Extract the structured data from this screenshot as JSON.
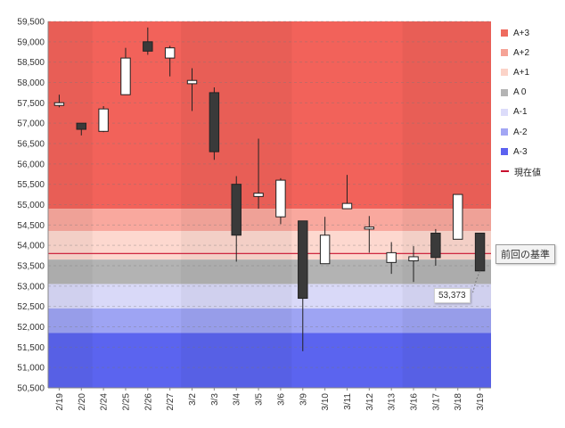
{
  "chart_data": {
    "type": "candlestick",
    "ylim": [
      50500,
      59500
    ],
    "y_ticks": [
      "50,500",
      "51,000",
      "51,500",
      "52,000",
      "52,500",
      "53,000",
      "53,500",
      "54,000",
      "54,500",
      "55,000",
      "55,500",
      "56,000",
      "56,500",
      "57,000",
      "57,500",
      "58,000",
      "58,500",
      "59,000",
      "59,500"
    ],
    "y_tick_values": [
      50500,
      51000,
      51500,
      52000,
      52500,
      53000,
      53500,
      54000,
      54500,
      55000,
      55500,
      56000,
      56500,
      57000,
      57500,
      58000,
      58500,
      59000,
      59500
    ],
    "categories": [
      "2/19",
      "2/20",
      "2/24",
      "2/25",
      "2/26",
      "2/27",
      "3/2",
      "3/3",
      "3/4",
      "3/5",
      "3/6",
      "3/9",
      "3/10",
      "3/11",
      "3/12",
      "3/13",
      "3/16",
      "3/17",
      "3/18",
      "3/19"
    ],
    "candles": [
      {
        "open": 57470,
        "high": 57700,
        "low": 57390,
        "close": 57470
      },
      {
        "open": 57000,
        "high": 57000,
        "low": 56700,
        "close": 56850
      },
      {
        "open": 56800,
        "high": 57420,
        "low": 56780,
        "close": 57350
      },
      {
        "open": 57700,
        "high": 58850,
        "low": 57700,
        "close": 58600
      },
      {
        "open": 59000,
        "high": 59350,
        "low": 58680,
        "close": 58770
      },
      {
        "open": 58600,
        "high": 58900,
        "low": 58150,
        "close": 58850
      },
      {
        "open": 57970,
        "high": 58350,
        "low": 57300,
        "close": 58050
      },
      {
        "open": 57750,
        "high": 57880,
        "low": 56100,
        "close": 56300
      },
      {
        "open": 55500,
        "high": 55700,
        "low": 53600,
        "close": 54250
      },
      {
        "open": 55200,
        "high": 56620,
        "low": 54900,
        "close": 55280
      },
      {
        "open": 54700,
        "high": 55650,
        "low": 54520,
        "close": 55600
      },
      {
        "open": 54600,
        "high": 54600,
        "low": 51400,
        "close": 52700
      },
      {
        "open": 53550,
        "high": 54700,
        "low": 53550,
        "close": 54250
      },
      {
        "open": 54900,
        "high": 55730,
        "low": 54900,
        "close": 55030
      },
      {
        "open": 54400,
        "high": 54720,
        "low": 53820,
        "close": 54450
      },
      {
        "open": 53580,
        "high": 54080,
        "low": 53300,
        "close": 53820
      },
      {
        "open": 53620,
        "high": 53980,
        "low": 53100,
        "close": 53720
      },
      {
        "open": 54300,
        "high": 54400,
        "low": 53500,
        "close": 53700
      },
      {
        "open": 54150,
        "high": 55250,
        "low": 54150,
        "close": 55250
      },
      {
        "open": 54300,
        "high": 54300,
        "low": 53373,
        "close": 53373
      }
    ],
    "reference_line": {
      "value": 53800,
      "color": "#c8102e"
    },
    "bands": [
      {
        "name": "A+3",
        "from": 54900,
        "to": 59500,
        "color": "#f2625a"
      },
      {
        "name": "A+2",
        "from": 54350,
        "to": 54900,
        "color": "#f9a89e"
      },
      {
        "name": "A+1",
        "from": 53650,
        "to": 54350,
        "color": "#fdd8cf"
      },
      {
        "name": "A 0",
        "from": 53050,
        "to": 53650,
        "color": "#b3b3b3"
      },
      {
        "name": "A-1",
        "from": 52450,
        "to": 53050,
        "color": "#d9d9f8"
      },
      {
        "name": "A-2",
        "from": 51850,
        "to": 52450,
        "color": "#9ea4f3"
      },
      {
        "name": "A-3",
        "from": 50500,
        "to": 51850,
        "color": "#5b64ef"
      }
    ],
    "legend": [
      {
        "label": "A+3",
        "color": "#ee6b5f",
        "kind": "square"
      },
      {
        "label": "A+2",
        "color": "#f5a396",
        "kind": "square"
      },
      {
        "label": "A+1",
        "color": "#fbd3c8",
        "kind": "square"
      },
      {
        "label": "A 0",
        "color": "#b4b4b4",
        "kind": "square"
      },
      {
        "label": "A-1",
        "color": "#dcdcfa",
        "kind": "square"
      },
      {
        "label": "A-2",
        "color": "#a2a6f4",
        "kind": "square"
      },
      {
        "label": "A-3",
        "color": "#5c62f0",
        "kind": "square"
      },
      {
        "label": "現在値",
        "color": "#c8102e",
        "kind": "line"
      }
    ],
    "legend_position": "right",
    "grid": true,
    "ref_label": "前回の基準",
    "last_value_label": "53,373"
  }
}
